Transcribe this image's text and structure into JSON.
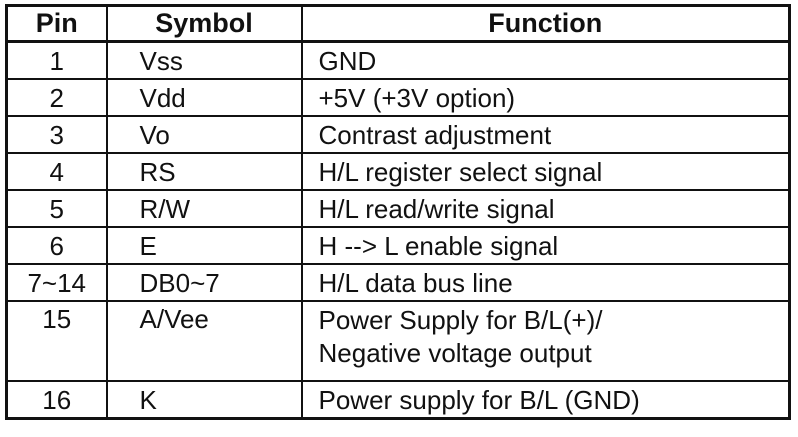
{
  "table": {
    "header": [
      "Pin",
      "Symbol",
      "Function"
    ],
    "rows": [
      [
        "1",
        "Vss",
        "GND"
      ],
      [
        "2",
        "Vdd",
        "+5V (+3V option)"
      ],
      [
        "3",
        "Vo",
        "Contrast adjustment"
      ],
      [
        "4",
        "RS",
        "H/L register select signal"
      ],
      [
        "5",
        "R/W",
        "H/L read/write signal"
      ],
      [
        "6",
        "E",
        "H --> L enable signal"
      ],
      [
        "7~14",
        "DB0~7",
        "H/L data bus line"
      ],
      [
        "15",
        "A/Vee",
        [
          "Power Supply for B/L(+)/",
          "Negative voltage output"
        ]
      ],
      [
        "16",
        "K",
        "Power supply for B/L (GND)"
      ]
    ]
  }
}
